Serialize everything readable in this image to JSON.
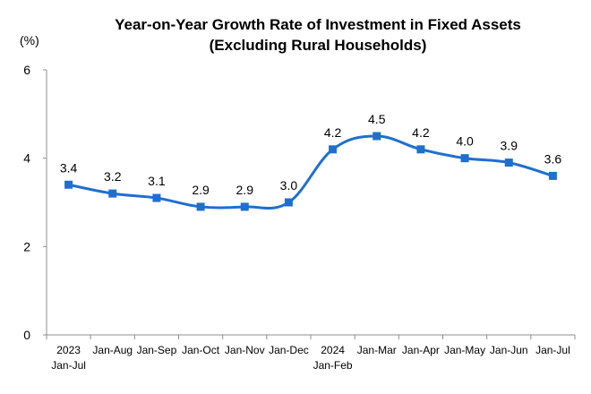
{
  "chart_data": {
    "type": "line",
    "title_line1": "Year-on-Year Growth Rate of Investment in Fixed Assets",
    "title_line2": "(Excluding Rural Households)",
    "unit_label": "(%)",
    "ylim": [
      0,
      6
    ],
    "yticks": [
      "0",
      "2",
      "4",
      "6"
    ],
    "grid": false,
    "categories": [
      {
        "top": "2023",
        "bottom": "Jan-Jul"
      },
      {
        "top": "Jan-Aug",
        "bottom": ""
      },
      {
        "top": "Jan-Sep",
        "bottom": ""
      },
      {
        "top": "Jan-Oct",
        "bottom": ""
      },
      {
        "top": "Jan-Nov",
        "bottom": ""
      },
      {
        "top": "Jan-Dec",
        "bottom": ""
      },
      {
        "top": "2024",
        "bottom": "Jan-Feb"
      },
      {
        "top": "Jan-Mar",
        "bottom": ""
      },
      {
        "top": "Jan-Apr",
        "bottom": ""
      },
      {
        "top": "Jan-May",
        "bottom": ""
      },
      {
        "top": "Jan-Jun",
        "bottom": ""
      },
      {
        "top": "Jan-Jul",
        "bottom": ""
      }
    ],
    "series": [
      {
        "values": [
          3.4,
          3.2,
          3.1,
          2.9,
          2.9,
          3.0,
          4.2,
          4.5,
          4.2,
          4.0,
          3.9,
          3.6
        ],
        "labels": [
          "3.4",
          "3.2",
          "3.1",
          "2.9",
          "2.9",
          "3.0",
          "4.2",
          "4.5",
          "4.2",
          "4.0",
          "3.9",
          "3.6"
        ],
        "color": "#1f6fcf"
      }
    ],
    "axis_color": "#8c8c8c"
  }
}
